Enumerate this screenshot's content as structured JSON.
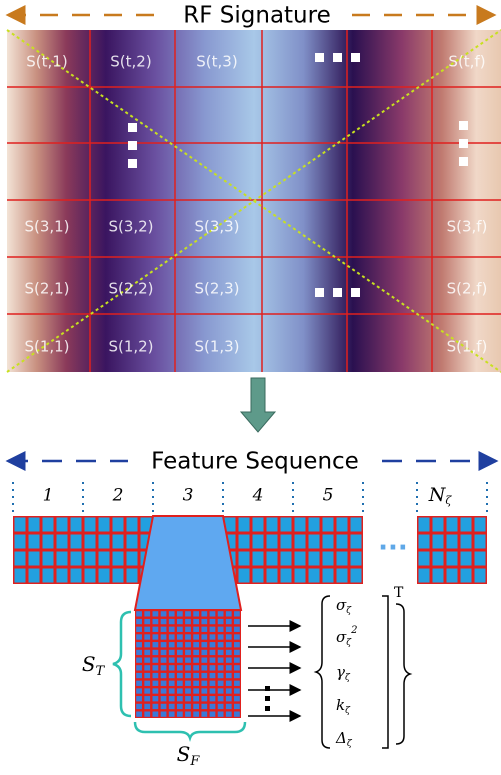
{
  "top_panel": {
    "title": "RF Signature",
    "cells": [
      [
        "S(t,1)",
        "S(t,2)",
        "S(t,3)",
        "S(t,f)"
      ],
      [
        "S(3,1)",
        "S(3,2)",
        "S(3,3)",
        "S(3,f)"
      ],
      [
        "S(2,1)",
        "S(2,2)",
        "S(2,3)",
        "S(2,f)"
      ],
      [
        "S(1,1)",
        "S(1,2)",
        "S(1,3)",
        "S(1,f)"
      ]
    ]
  },
  "bottom_panel": {
    "title": "Feature Sequence",
    "segments": [
      "1",
      "2",
      "3",
      "4",
      "5"
    ],
    "last_segment": {
      "main": "N",
      "sub": "ζ"
    },
    "s_t": {
      "main": "S",
      "sub": "T"
    },
    "s_f": {
      "main": "S",
      "sub": "F"
    },
    "vector": [
      {
        "main": "σ",
        "sub": "ζ"
      },
      {
        "main": "σ",
        "sub": "ζ",
        "sup": "2"
      },
      {
        "main": "γ",
        "sub": "ζ"
      },
      {
        "main": "k",
        "sub": "ζ"
      },
      {
        "main": "Δ",
        "sub": "ζ"
      }
    ],
    "transpose": "T"
  }
}
